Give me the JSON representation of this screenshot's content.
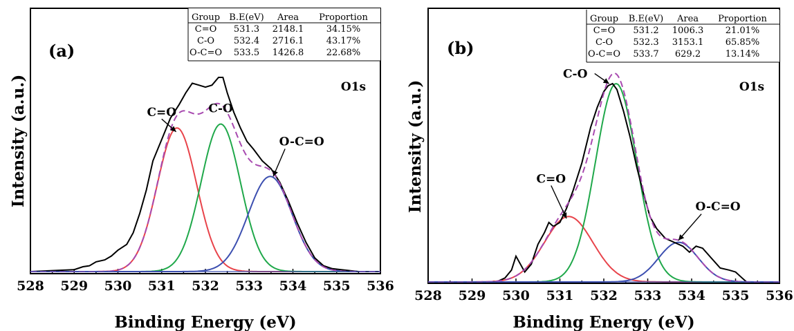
{
  "chart_data": [
    {
      "type": "line",
      "panel_label": "(a)",
      "species_label": "O1s",
      "xlabel": "Binding Energy (eV)",
      "ylabel": "Intensity (a.u.)",
      "xlim": [
        528,
        536
      ],
      "ylim": [
        0,
        1.05
      ],
      "x_ticks": [
        "528",
        "529",
        "530",
        "531",
        "532",
        "533",
        "534",
        "535",
        "536"
      ],
      "grid": false,
      "table": {
        "headers": [
          "Group",
          "B.E(eV)",
          "Area",
          "Proportion"
        ],
        "rows": [
          [
            "C=O",
            "531.3",
            "2148.1",
            "34.15%"
          ],
          [
            "C-O",
            "532.4",
            "2716.1",
            "43.17%"
          ],
          [
            "O-C=O",
            "533.5",
            "1426.8",
            "22.68%"
          ]
        ]
      },
      "components": [
        {
          "label": "C=O",
          "color": "#e8434a",
          "center": 531.35,
          "sigma": 0.45,
          "amp": 0.74,
          "label_at": [
            531.0,
            0.8
          ],
          "arrow_to": [
            531.33,
            0.72
          ]
        },
        {
          "label": "C-O",
          "color": "#1fa84a",
          "center": 532.35,
          "sigma": 0.45,
          "amp": 0.76,
          "label_at": [
            532.35,
            0.82
          ],
          "arrow_to": null
        },
        {
          "label": "O-C=O",
          "color": "#3c4fb0",
          "center": 533.48,
          "sigma": 0.5,
          "amp": 0.49,
          "label_at": [
            534.2,
            0.65
          ],
          "arrow_to": [
            533.55,
            0.49
          ]
        }
      ],
      "envelope": {
        "color": "#a84ab0",
        "style": "dashed"
      },
      "measured": {
        "color": "#000000",
        "x": [
          528,
          528.5,
          529.0,
          529.2,
          529.35,
          529.5,
          529.7,
          529.85,
          530.0,
          530.2,
          530.35,
          530.5,
          530.65,
          530.8,
          531.0,
          531.2,
          531.4,
          531.55,
          531.7,
          531.85,
          532.0,
          532.15,
          532.3,
          532.4,
          532.5,
          532.65,
          532.8,
          532.95,
          533.1,
          533.3,
          533.5,
          533.7,
          533.9,
          534.1,
          534.3,
          534.5,
          534.7,
          534.9,
          535.1,
          535.3,
          535.5,
          536
        ],
        "y": [
          0.0,
          0.005,
          0.01,
          0.025,
          0.03,
          0.05,
          0.06,
          0.08,
          0.11,
          0.14,
          0.2,
          0.3,
          0.42,
          0.57,
          0.68,
          0.79,
          0.86,
          0.92,
          0.97,
          0.96,
          0.95,
          0.96,
          1.0,
          1.0,
          0.92,
          0.82,
          0.74,
          0.67,
          0.63,
          0.57,
          0.53,
          0.46,
          0.36,
          0.25,
          0.15,
          0.07,
          0.03,
          0.015,
          0.01,
          0.005,
          0.0,
          0.0
        ]
      }
    },
    {
      "type": "line",
      "panel_label": "(b)",
      "species_label": "O1s",
      "xlabel": "Binding Energy (eV)",
      "ylabel": "Intensity (a.u.)",
      "xlim": [
        528,
        536
      ],
      "ylim": [
        0,
        1.05
      ],
      "x_ticks": [
        "528",
        "529",
        "530",
        "531",
        "532",
        "533",
        "534",
        "535",
        "536"
      ],
      "grid": false,
      "table": {
        "headers": [
          "Group",
          "B.E(eV)",
          "Area",
          "Proportion"
        ],
        "rows": [
          [
            "C=O",
            "531.2",
            "1006.3",
            "21.01%"
          ],
          [
            "C-O",
            "532.3",
            "3153.1",
            "65.85%"
          ],
          [
            "O-C=O",
            "533.7",
            "629.2",
            "13.14%"
          ]
        ]
      },
      "components": [
        {
          "label": "C=O",
          "color": "#e8434a",
          "center": 531.2,
          "sigma": 0.55,
          "amp": 0.33,
          "label_at": [
            530.8,
            0.5
          ],
          "arrow_to": [
            531.15,
            0.32
          ]
        },
        {
          "label": "C-O",
          "color": "#1fa84a",
          "center": 532.28,
          "sigma": 0.47,
          "amp": 1.0,
          "label_at": [
            531.35,
            1.03
          ],
          "arrow_to": [
            532.12,
            1.0
          ]
        },
        {
          "label": "O-C=O",
          "color": "#3c4fb0",
          "center": 533.7,
          "sigma": 0.45,
          "amp": 0.2,
          "label_at": [
            534.6,
            0.36
          ],
          "arrow_to": [
            533.7,
            0.21
          ]
        }
      ],
      "envelope": {
        "color": "#a84ab0",
        "style": "dashed"
      },
      "measured": {
        "color": "#000000",
        "x": [
          529.55,
          529.75,
          529.9,
          530.0,
          530.1,
          530.2,
          530.35,
          530.5,
          530.65,
          530.75,
          530.85,
          531.0,
          531.15,
          531.3,
          531.5,
          531.7,
          531.85,
          532.0,
          532.1,
          532.2,
          532.3,
          532.45,
          532.6,
          532.75,
          532.9,
          533.05,
          533.2,
          533.4,
          533.6,
          533.8,
          533.95,
          534.1,
          534.25,
          534.45,
          534.65,
          534.85,
          535.0,
          535.15,
          535.25
        ],
        "y": [
          0.0,
          0.02,
          0.06,
          0.13,
          0.09,
          0.05,
          0.09,
          0.19,
          0.25,
          0.3,
          0.28,
          0.3,
          0.37,
          0.46,
          0.6,
          0.78,
          0.88,
          0.96,
          0.99,
          1.0,
          0.97,
          0.86,
          0.73,
          0.58,
          0.45,
          0.33,
          0.27,
          0.22,
          0.2,
          0.18,
          0.15,
          0.18,
          0.17,
          0.12,
          0.07,
          0.06,
          0.05,
          0.02,
          0.0
        ]
      }
    }
  ]
}
